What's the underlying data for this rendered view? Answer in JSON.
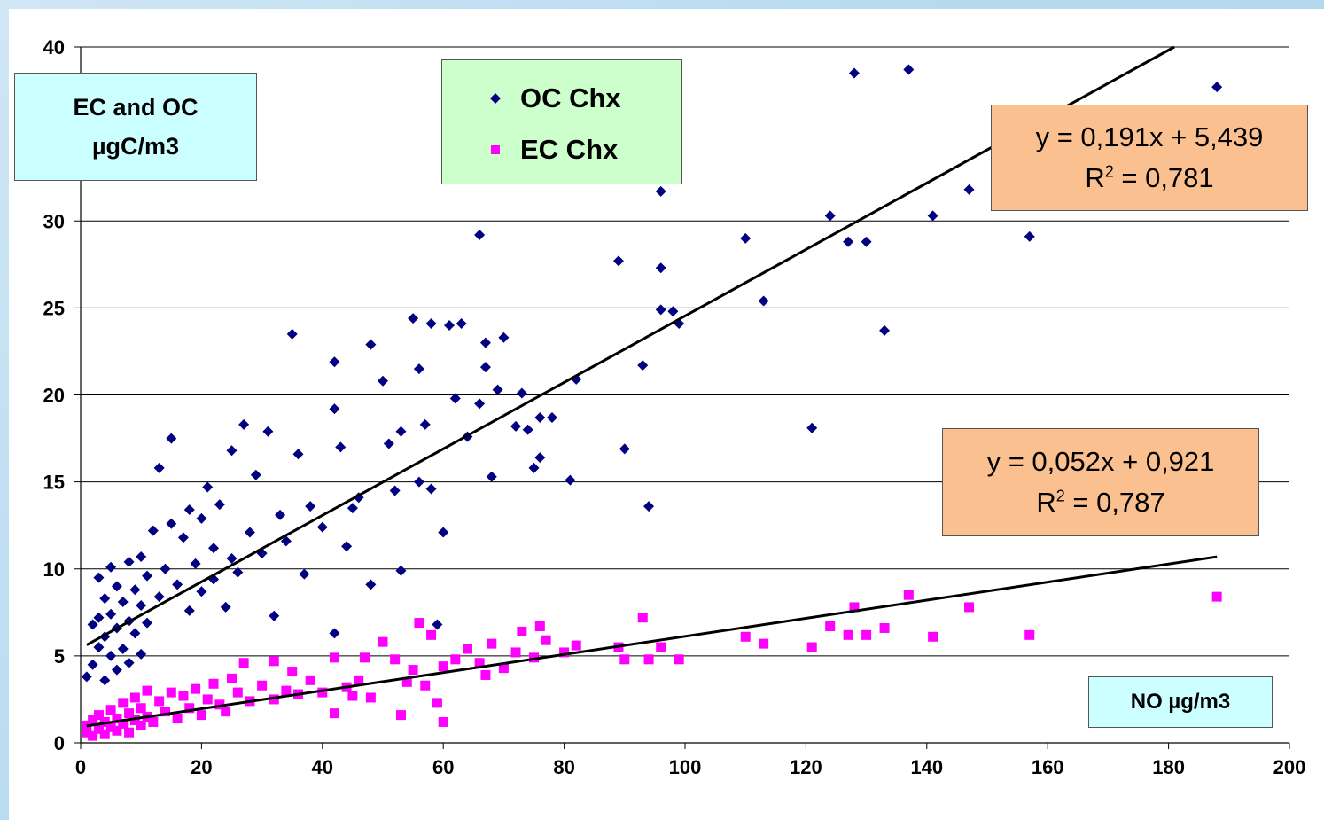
{
  "chart_data": {
    "type": "scatter",
    "xlabel": "NO µg/m3",
    "ylabel_lines": [
      "EC and OC",
      "µgC/m3"
    ],
    "xlim": [
      0,
      200
    ],
    "ylim": [
      0,
      40
    ],
    "x_ticks": [
      "0",
      "20",
      "40",
      "60",
      "80",
      "100",
      "120",
      "140",
      "160",
      "180",
      "200"
    ],
    "y_ticks": [
      "0",
      "5",
      "10",
      "15",
      "20",
      "25",
      "30",
      "40"
    ],
    "grid": "horizontal",
    "legend_position": "top-center",
    "series": [
      {
        "name": "OC Chx",
        "marker": "diamond",
        "color": "#000080",
        "points": [
          [
            1,
            3.8
          ],
          [
            2,
            4.5
          ],
          [
            2,
            6.8
          ],
          [
            3,
            5.5
          ],
          [
            3,
            7.2
          ],
          [
            3,
            9.5
          ],
          [
            4,
            3.6
          ],
          [
            4,
            6.1
          ],
          [
            4,
            8.3
          ],
          [
            5,
            5.0
          ],
          [
            5,
            7.4
          ],
          [
            5,
            10.1
          ],
          [
            6,
            4.2
          ],
          [
            6,
            6.6
          ],
          [
            6,
            9.0
          ],
          [
            7,
            5.4
          ],
          [
            7,
            8.1
          ],
          [
            8,
            4.6
          ],
          [
            8,
            7.0
          ],
          [
            8,
            10.4
          ],
          [
            9,
            6.3
          ],
          [
            9,
            8.8
          ],
          [
            10,
            5.1
          ],
          [
            10,
            7.9
          ],
          [
            10,
            10.7
          ],
          [
            11,
            6.9
          ],
          [
            11,
            9.6
          ],
          [
            12,
            12.2
          ],
          [
            13,
            8.4
          ],
          [
            13,
            15.8
          ],
          [
            14,
            10.0
          ],
          [
            15,
            12.6
          ],
          [
            15,
            17.5
          ],
          [
            16,
            9.1
          ],
          [
            17,
            11.8
          ],
          [
            18,
            7.6
          ],
          [
            18,
            13.4
          ],
          [
            19,
            10.3
          ],
          [
            20,
            8.7
          ],
          [
            20,
            12.9
          ],
          [
            21,
            14.7
          ],
          [
            22,
            11.2
          ],
          [
            22,
            9.4
          ],
          [
            23,
            13.7
          ],
          [
            24,
            7.8
          ],
          [
            25,
            10.6
          ],
          [
            25,
            16.8
          ],
          [
            26,
            9.8
          ],
          [
            27,
            18.3
          ],
          [
            28,
            12.1
          ],
          [
            29,
            15.4
          ],
          [
            30,
            10.9
          ],
          [
            31,
            17.9
          ],
          [
            32,
            7.3
          ],
          [
            33,
            13.1
          ],
          [
            34,
            11.6
          ],
          [
            35,
            23.5
          ],
          [
            36,
            16.6
          ],
          [
            37,
            9.7
          ],
          [
            38,
            13.6
          ],
          [
            40,
            12.4
          ],
          [
            42,
            21.9
          ],
          [
            42,
            19.2
          ],
          [
            42,
            6.3
          ],
          [
            43,
            17.0
          ],
          [
            44,
            11.3
          ],
          [
            45,
            13.5
          ],
          [
            46,
            14.1
          ],
          [
            48,
            22.9
          ],
          [
            48,
            9.1
          ],
          [
            50,
            20.8
          ],
          [
            51,
            17.2
          ],
          [
            52,
            14.5
          ],
          [
            53,
            9.9
          ],
          [
            53,
            17.9
          ],
          [
            55,
            24.4
          ],
          [
            56,
            21.5
          ],
          [
            56,
            15.0
          ],
          [
            57,
            18.3
          ],
          [
            58,
            24.1
          ],
          [
            58,
            14.6
          ],
          [
            59,
            6.8
          ],
          [
            60,
            12.1
          ],
          [
            61,
            24.0
          ],
          [
            62,
            19.8
          ],
          [
            63,
            24.1
          ],
          [
            64,
            17.6
          ],
          [
            66,
            29.2
          ],
          [
            66,
            19.5
          ],
          [
            67,
            21.6
          ],
          [
            67,
            23.0
          ],
          [
            68,
            15.3
          ],
          [
            69,
            20.3
          ],
          [
            70,
            23.3
          ],
          [
            72,
            18.2
          ],
          [
            73,
            20.1
          ],
          [
            74,
            18.0
          ],
          [
            75,
            15.8
          ],
          [
            76,
            16.4
          ],
          [
            76,
            18.7
          ],
          [
            78,
            18.7
          ],
          [
            81,
            15.1
          ],
          [
            82,
            20.9
          ],
          [
            89,
            27.7
          ],
          [
            90,
            16.9
          ],
          [
            93,
            21.7
          ],
          [
            94,
            13.6
          ],
          [
            96,
            24.9
          ],
          [
            96,
            27.3
          ],
          [
            96,
            31.7
          ],
          [
            98,
            24.8
          ],
          [
            99,
            24.1
          ],
          [
            110,
            29.0
          ],
          [
            113,
            25.4
          ],
          [
            121,
            18.1
          ],
          [
            124,
            30.3
          ],
          [
            127,
            28.8
          ],
          [
            128,
            38.5
          ],
          [
            130,
            28.8
          ],
          [
            133,
            23.7
          ],
          [
            137,
            38.7
          ],
          [
            141,
            30.3
          ],
          [
            147,
            31.8
          ],
          [
            157,
            29.1
          ],
          [
            188,
            37.7
          ]
        ]
      },
      {
        "name": "EC Chx",
        "marker": "square",
        "color": "#ff00ff",
        "points": [
          [
            1,
            0.6
          ],
          [
            1,
            1.0
          ],
          [
            2,
            0.4
          ],
          [
            2,
            1.3
          ],
          [
            3,
            0.8
          ],
          [
            3,
            1.6
          ],
          [
            4,
            0.5
          ],
          [
            4,
            1.2
          ],
          [
            5,
            0.9
          ],
          [
            5,
            1.9
          ],
          [
            6,
            0.7
          ],
          [
            6,
            1.4
          ],
          [
            7,
            1.1
          ],
          [
            7,
            2.3
          ],
          [
            8,
            0.6
          ],
          [
            8,
            1.7
          ],
          [
            9,
            1.3
          ],
          [
            9,
            2.6
          ],
          [
            10,
            1.0
          ],
          [
            10,
            2.0
          ],
          [
            11,
            1.5
          ],
          [
            11,
            3.0
          ],
          [
            12,
            1.2
          ],
          [
            13,
            2.4
          ],
          [
            14,
            1.8
          ],
          [
            15,
            2.9
          ],
          [
            16,
            1.4
          ],
          [
            17,
            2.7
          ],
          [
            18,
            2.0
          ],
          [
            19,
            3.1
          ],
          [
            20,
            1.6
          ],
          [
            21,
            2.5
          ],
          [
            22,
            3.4
          ],
          [
            23,
            2.2
          ],
          [
            24,
            1.8
          ],
          [
            25,
            3.7
          ],
          [
            26,
            2.9
          ],
          [
            27,
            4.6
          ],
          [
            28,
            2.4
          ],
          [
            30,
            3.3
          ],
          [
            32,
            2.5
          ],
          [
            32,
            4.7
          ],
          [
            34,
            3.0
          ],
          [
            35,
            4.1
          ],
          [
            36,
            2.8
          ],
          [
            38,
            3.6
          ],
          [
            40,
            2.9
          ],
          [
            42,
            1.7
          ],
          [
            42,
            4.9
          ],
          [
            44,
            3.2
          ],
          [
            45,
            2.7
          ],
          [
            46,
            3.6
          ],
          [
            47,
            4.9
          ],
          [
            48,
            2.6
          ],
          [
            50,
            5.8
          ],
          [
            52,
            4.8
          ],
          [
            53,
            1.6
          ],
          [
            54,
            3.5
          ],
          [
            55,
            4.2
          ],
          [
            56,
            6.9
          ],
          [
            57,
            3.3
          ],
          [
            58,
            6.2
          ],
          [
            59,
            2.3
          ],
          [
            60,
            4.4
          ],
          [
            60,
            1.2
          ],
          [
            62,
            4.8
          ],
          [
            64,
            5.4
          ],
          [
            66,
            4.6
          ],
          [
            67,
            3.9
          ],
          [
            68,
            5.7
          ],
          [
            70,
            4.3
          ],
          [
            72,
            5.2
          ],
          [
            73,
            6.4
          ],
          [
            75,
            4.9
          ],
          [
            76,
            6.7
          ],
          [
            77,
            5.9
          ],
          [
            80,
            5.2
          ],
          [
            82,
            5.6
          ],
          [
            89,
            5.5
          ],
          [
            90,
            4.8
          ],
          [
            93,
            7.2
          ],
          [
            94,
            4.8
          ],
          [
            96,
            5.5
          ],
          [
            99,
            4.8
          ],
          [
            110,
            6.1
          ],
          [
            113,
            5.7
          ],
          [
            121,
            5.5
          ],
          [
            124,
            6.7
          ],
          [
            127,
            6.2
          ],
          [
            128,
            7.8
          ],
          [
            130,
            6.2
          ],
          [
            133,
            6.6
          ],
          [
            137,
            8.5
          ],
          [
            141,
            6.1
          ],
          [
            147,
            7.8
          ],
          [
            157,
            6.2
          ],
          [
            188,
            8.4
          ]
        ]
      }
    ],
    "trendlines": [
      {
        "series": "OC Chx",
        "slope": 0.191,
        "intercept": 5.439,
        "x_range": [
          1,
          190
        ],
        "equation": "y = 0,191x + 5,439",
        "r2_label": "R",
        "r2_value": " = 0,781"
      },
      {
        "series": "EC Chx",
        "slope": 0.052,
        "intercept": 0.921,
        "x_range": [
          1,
          188
        ],
        "equation": "y = 0,052x + 0,921",
        "r2_label": "R",
        "r2_value": " = 0,787"
      }
    ]
  }
}
